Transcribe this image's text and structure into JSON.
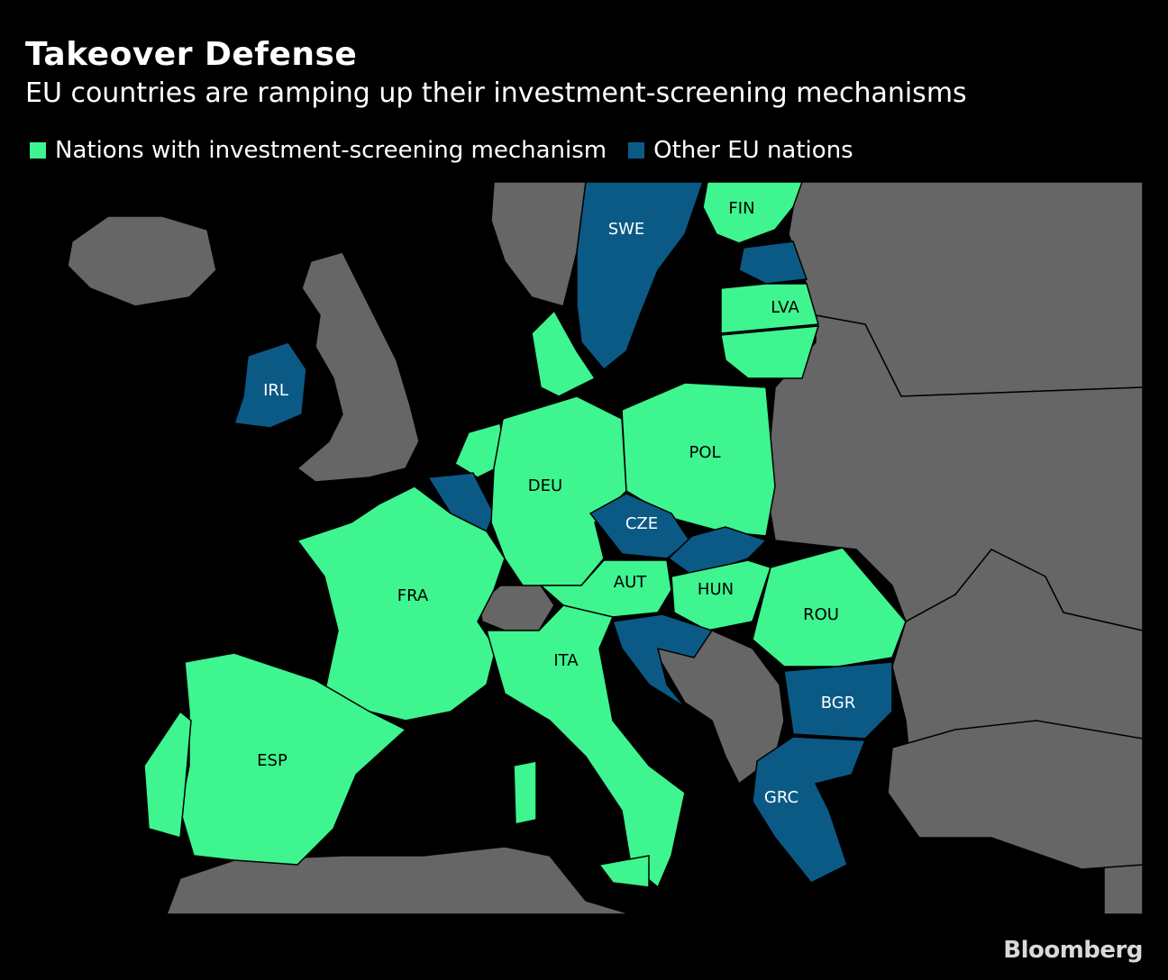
{
  "title": "Takeover Defense",
  "subtitle": "EU countries are ramping up their investment-screening mechanisms",
  "legend": [
    {
      "label": "Nations with investment-screening mechanism",
      "color": "#3ef58f"
    },
    {
      "label": "Other EU nations",
      "color": "#0b5a86"
    }
  ],
  "colors": {
    "background": "#000000",
    "non_eu": "#666666",
    "border": "#000000",
    "screening": "#3ef58f",
    "other_eu": "#0b5a86"
  },
  "countries": [
    {
      "code": "FIN",
      "status": "screening"
    },
    {
      "code": "SWE",
      "status": "other"
    },
    {
      "code": "LVA",
      "status": "screening"
    },
    {
      "code": "IRL",
      "status": "other"
    },
    {
      "code": "POL",
      "status": "screening"
    },
    {
      "code": "DEU",
      "status": "screening"
    },
    {
      "code": "CZE",
      "status": "other"
    },
    {
      "code": "AUT",
      "status": "screening"
    },
    {
      "code": "HUN",
      "status": "screening"
    },
    {
      "code": "FRA",
      "status": "screening"
    },
    {
      "code": "ROU",
      "status": "screening"
    },
    {
      "code": "ITA",
      "status": "screening"
    },
    {
      "code": "BGR",
      "status": "other"
    },
    {
      "code": "ESP",
      "status": "screening"
    },
    {
      "code": "GRC",
      "status": "other"
    }
  ],
  "source": "Bloomberg"
}
